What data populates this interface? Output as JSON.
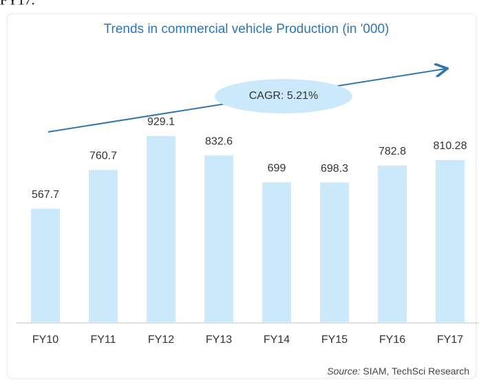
{
  "top_text": "FY17.",
  "chart_data": {
    "type": "bar",
    "title": "Trends in commercial vehicle Production (in '000)",
    "categories": [
      "FY10",
      "FY11",
      "FY12",
      "FY13",
      "FY14",
      "FY15",
      "FY16",
      "FY17"
    ],
    "values": [
      567.7,
      760.7,
      929.1,
      832.6,
      699,
      698.3,
      782.8,
      810.28
    ],
    "color": "#cce8fb",
    "annotation": "CAGR: 5.21%",
    "source_label": "Source:",
    "source": "SIAM, TechSci Research"
  }
}
